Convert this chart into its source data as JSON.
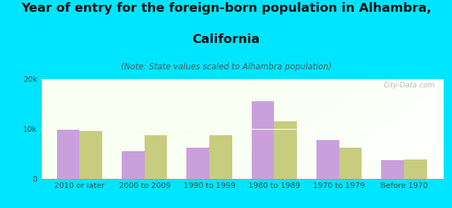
{
  "title_line1": "Year of entry for the foreign-born population in Alhambra,",
  "title_line2": "California",
  "subtitle": "(Note: State values scaled to Alhambra population)",
  "categories": [
    "2010 or later",
    "2000 to 2009",
    "1990 to 1999",
    "1980 to 1989",
    "1970 to 1979",
    "Before 1970"
  ],
  "alhambra_values": [
    9800,
    5500,
    6200,
    15500,
    7800,
    3800
  ],
  "california_values": [
    9600,
    8800,
    8700,
    11500,
    6200,
    3900
  ],
  "alhambra_color": "#c9a0dc",
  "california_color": "#c8cc7f",
  "background_outer": "#00e5ff",
  "ylim": [
    0,
    20000
  ],
  "ytick_labels": [
    "0",
    "10k",
    "20k"
  ],
  "bar_width": 0.35,
  "watermark": "City-Data.com",
  "title_fontsize": 13,
  "subtitle_fontsize": 8.5,
  "legend_fontsize": 10,
  "tick_fontsize": 8
}
